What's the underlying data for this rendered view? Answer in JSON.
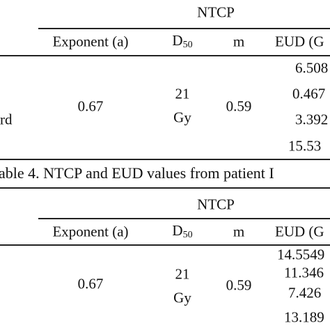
{
  "table1": {
    "group_header": "NTCP",
    "columns": {
      "exponent": "Exponent (a)",
      "d50": {
        "main": "D",
        "sub": "50"
      },
      "m": "m",
      "eud": "EUD (G"
    },
    "row_label": "rd",
    "exponent": "0.67",
    "d50": [
      "21",
      "Gy"
    ],
    "m": "0.59",
    "eud": [
      "6.508",
      "0.467",
      "3.392",
      "15.53"
    ]
  },
  "caption": "able 4. NTCP and EUD values from patient I",
  "table2": {
    "group_header": "NTCP",
    "columns": {
      "exponent": "Exponent (a)",
      "d50": {
        "main": "D",
        "sub": "50"
      },
      "m": "m",
      "eud": "EUD (G"
    },
    "exponent": "0.67",
    "d50": [
      "21",
      "Gy"
    ],
    "m": "0.59",
    "eud": [
      "14.5549",
      "11.346",
      "7.426",
      "13.189"
    ]
  }
}
